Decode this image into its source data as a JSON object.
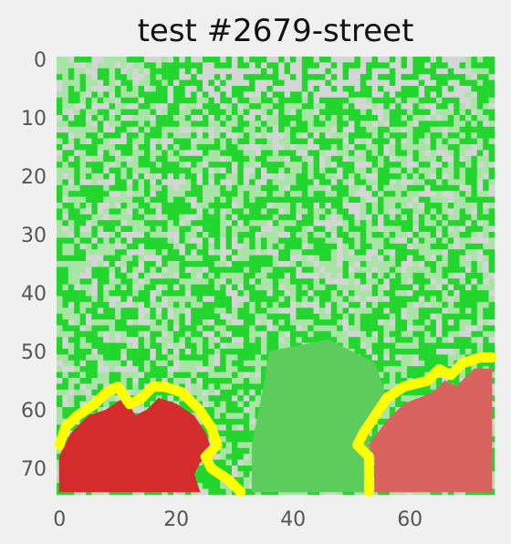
{
  "chart_data": {
    "type": "heatmap",
    "title": "test #2679-street",
    "xlabel": "",
    "ylabel": "",
    "xlim": [
      0,
      74
    ],
    "ylim": [
      74,
      0
    ],
    "grid": false,
    "x_ticks": [
      {
        "value": 0,
        "label": "0"
      },
      {
        "value": 20,
        "label": "20"
      },
      {
        "value": 40,
        "label": "40"
      },
      {
        "value": 60,
        "label": "60"
      }
    ],
    "y_ticks": [
      {
        "value": 0,
        "label": "0"
      },
      {
        "value": 10,
        "label": "10"
      },
      {
        "value": 20,
        "label": "20"
      },
      {
        "value": 30,
        "label": "30"
      },
      {
        "value": 40,
        "label": "40"
      },
      {
        "value": 50,
        "label": "50"
      },
      {
        "value": 60,
        "label": "60"
      },
      {
        "value": 70,
        "label": "70"
      }
    ],
    "grid_size": [
      75,
      75
    ],
    "colors": {
      "background": "#f0f0f0",
      "light_gray": "#d4d6d5",
      "pale_green": "#a9e3a6",
      "bright_green": "#22d62e",
      "medium_green": "#5ccc5c",
      "red": "#d42c2c",
      "light_red": "#d9645f",
      "yellow_boundary": "#ffff00"
    },
    "regions": [
      {
        "name": "street-flat-green",
        "color": "#5ccc5c",
        "polygon": [
          [
            36,
            50
          ],
          [
            46,
            48
          ],
          [
            54,
            52
          ],
          [
            56,
            58
          ],
          [
            53,
            62
          ],
          [
            53,
            74
          ],
          [
            33,
            74
          ],
          [
            33,
            66
          ],
          [
            35,
            56
          ]
        ]
      },
      {
        "name": "left-red-region",
        "color": "#d42c2c",
        "polygon": [
          [
            0,
            68
          ],
          [
            2,
            64
          ],
          [
            5,
            61
          ],
          [
            8,
            60
          ],
          [
            11,
            58
          ],
          [
            13,
            61
          ],
          [
            15,
            60
          ],
          [
            17,
            58
          ],
          [
            20,
            59
          ],
          [
            23,
            61
          ],
          [
            25,
            64
          ],
          [
            26,
            67
          ],
          [
            24,
            69
          ],
          [
            23,
            71
          ],
          [
            24,
            74
          ],
          [
            0,
            74
          ]
        ]
      },
      {
        "name": "right-red-region",
        "color": "#d9645f",
        "polygon": [
          [
            54,
            74
          ],
          [
            54,
            68
          ],
          [
            53,
            66
          ],
          [
            56,
            62
          ],
          [
            59,
            59
          ],
          [
            64,
            57
          ],
          [
            66,
            55
          ],
          [
            68,
            56
          ],
          [
            71,
            53
          ],
          [
            74,
            53
          ],
          [
            74,
            74
          ]
        ]
      }
    ],
    "boundaries": [
      {
        "name": "left-yellow-boundary",
        "color": "#ffff00",
        "points": [
          [
            0,
            66
          ],
          [
            1,
            63
          ],
          [
            3,
            61
          ],
          [
            6,
            59
          ],
          [
            8,
            57
          ],
          [
            10,
            56
          ],
          [
            12,
            59
          ],
          [
            14,
            58
          ],
          [
            16,
            56
          ],
          [
            18,
            56
          ],
          [
            21,
            57
          ],
          [
            24,
            60
          ],
          [
            26,
            63
          ],
          [
            27,
            66
          ],
          [
            25,
            68
          ],
          [
            26,
            70
          ],
          [
            29,
            72
          ],
          [
            31,
            74
          ]
        ]
      },
      {
        "name": "right-yellow-boundary",
        "color": "#ffff00",
        "points": [
          [
            53,
            74
          ],
          [
            53,
            68
          ],
          [
            51,
            66
          ],
          [
            52,
            64
          ],
          [
            54,
            61
          ],
          [
            56,
            58
          ],
          [
            59,
            56
          ],
          [
            63,
            55
          ],
          [
            65,
            53
          ],
          [
            67,
            54
          ],
          [
            69,
            52
          ],
          [
            72,
            51
          ],
          [
            74,
            51
          ]
        ]
      }
    ]
  }
}
